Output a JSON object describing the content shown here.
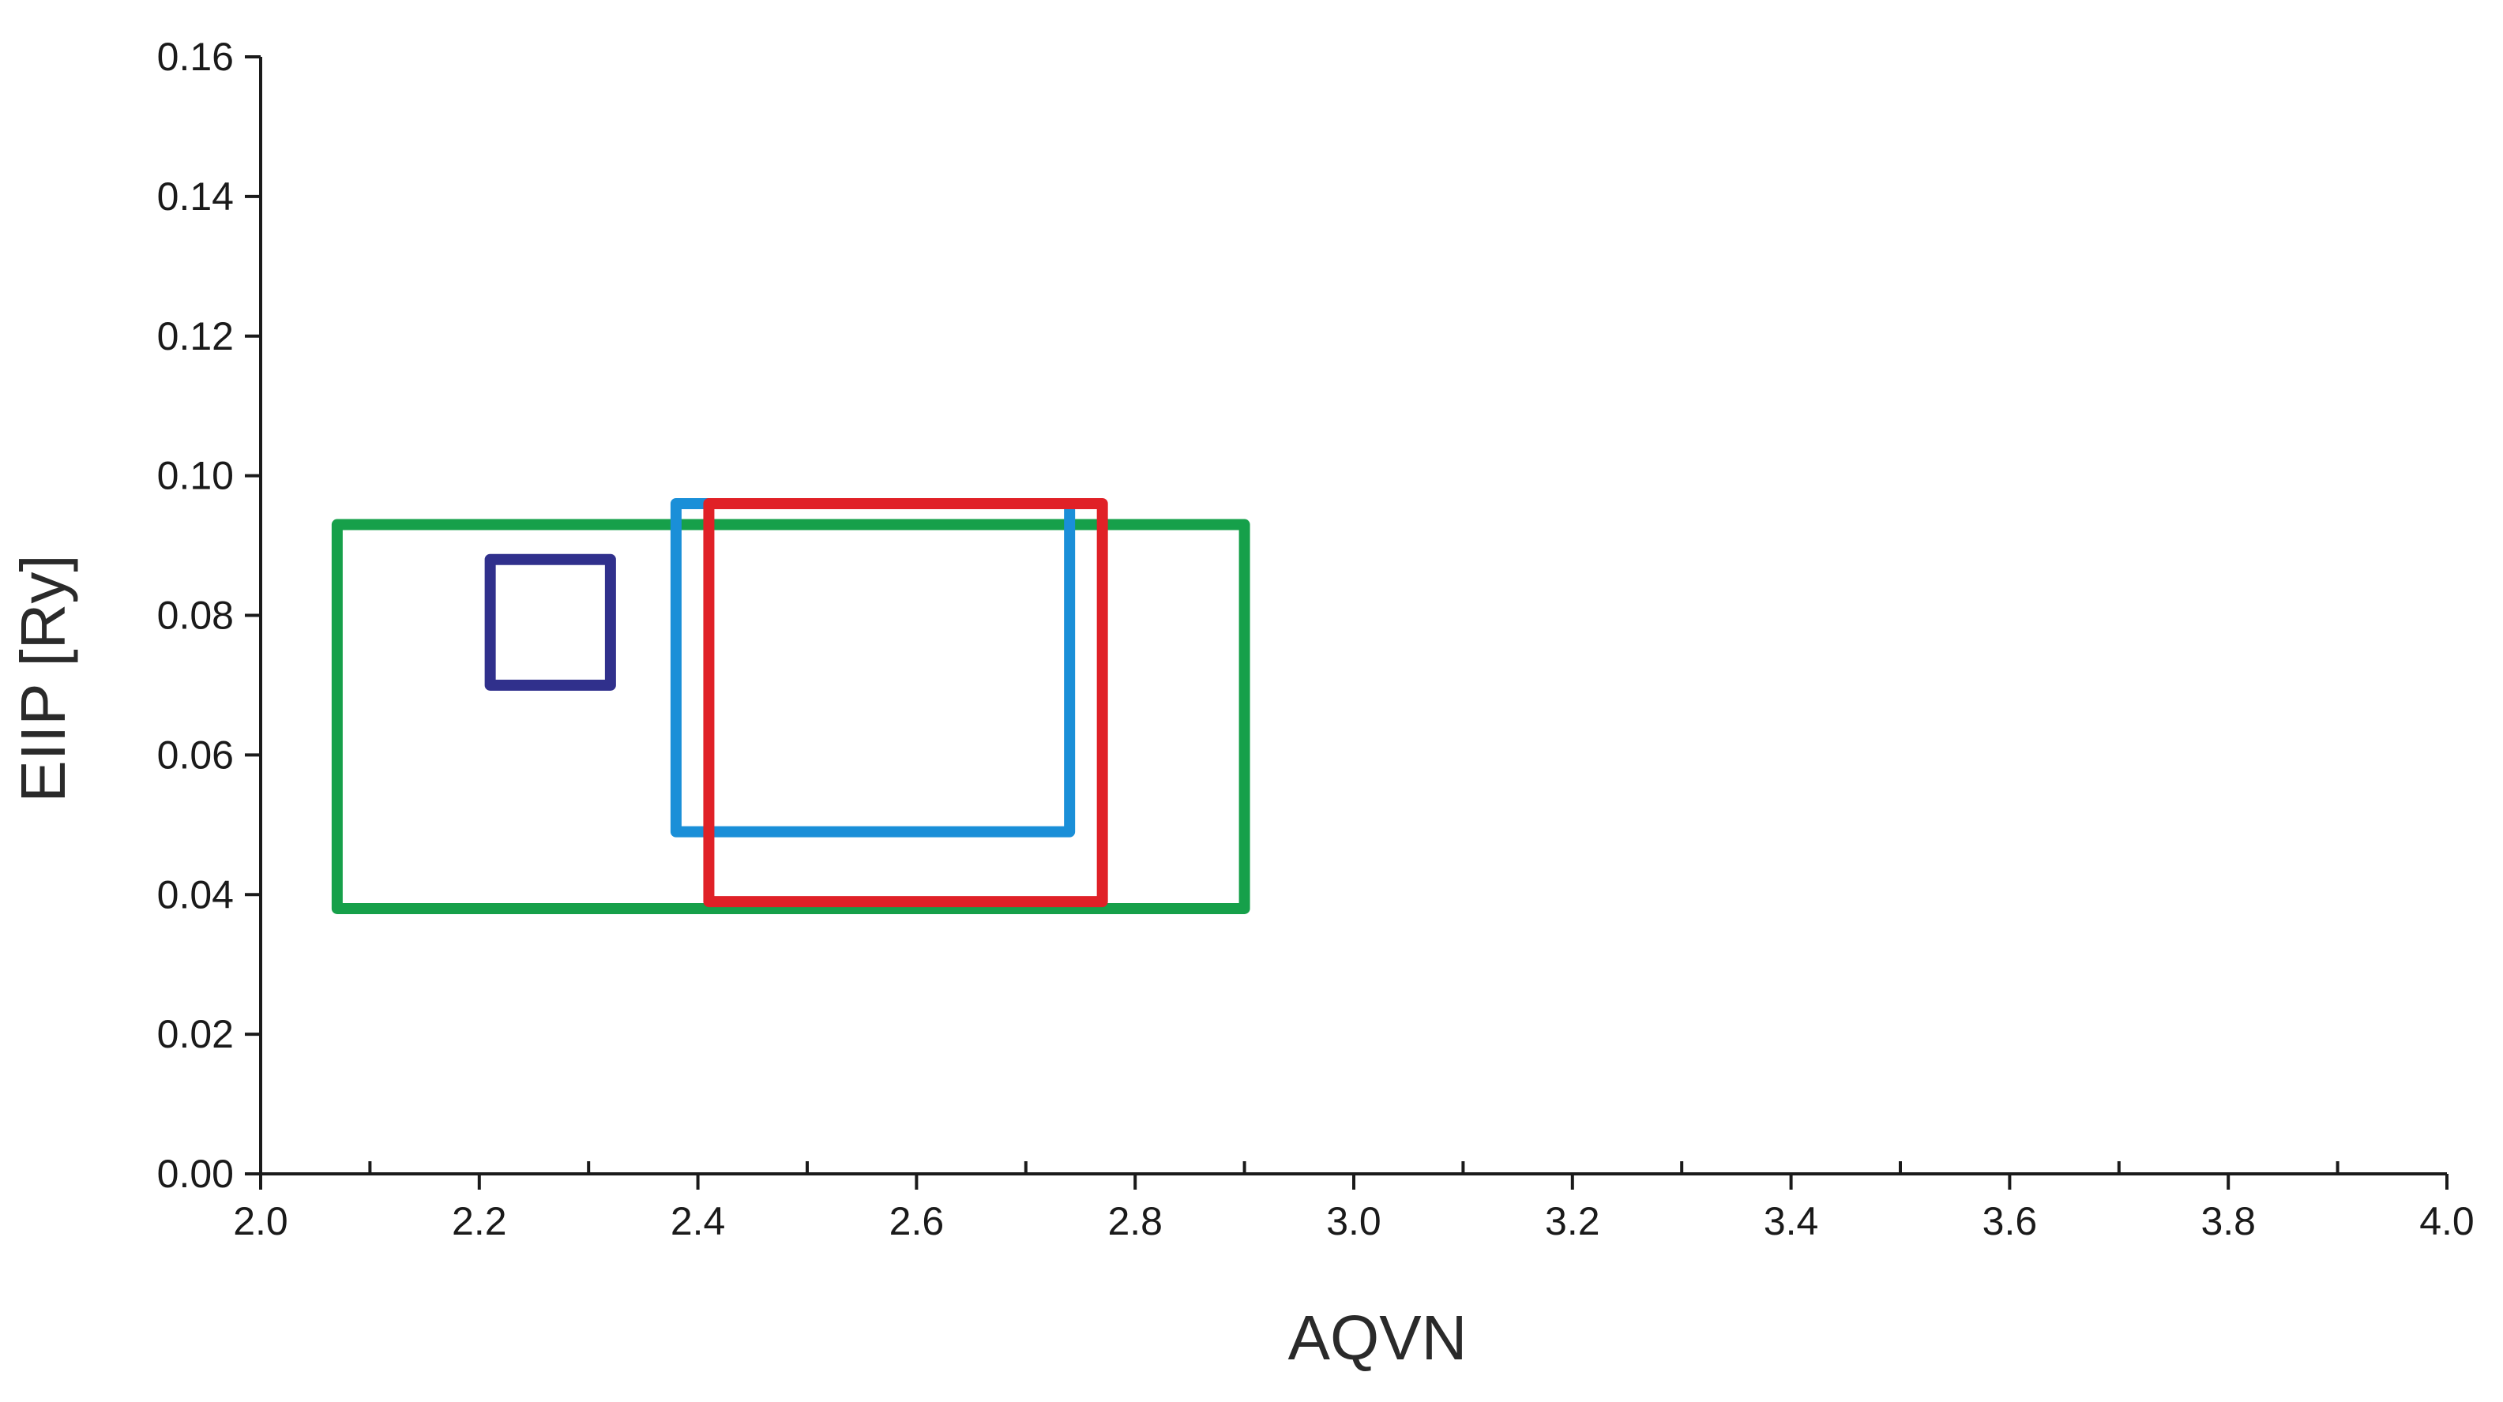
{
  "chart_data": {
    "type": "rectangle",
    "xlabel": "AQVN",
    "ylabel": "EIIP [Ry]",
    "xlim": [
      2.0,
      4.0
    ],
    "ylim": [
      0.0,
      0.16
    ],
    "x_ticks": [
      2.0,
      2.2,
      2.4,
      2.6,
      2.8,
      3.0,
      3.2,
      3.4,
      3.6,
      3.8,
      4.0
    ],
    "x_tick_labels": [
      "2.0",
      "2.2",
      "2.4",
      "2.6",
      "2.8",
      "3.0",
      "3.2",
      "3.4",
      "3.6",
      "3.8",
      "4.0"
    ],
    "x_minor_ticks": [
      2.1,
      2.3,
      2.5,
      2.7,
      2.9,
      3.1,
      3.3,
      3.5,
      3.7,
      3.9
    ],
    "y_ticks": [
      0.0,
      0.02,
      0.04,
      0.06,
      0.08,
      0.1,
      0.12,
      0.14,
      0.16
    ],
    "y_tick_labels": [
      "0.00",
      "0.02",
      "0.04",
      "0.06",
      "0.08",
      "0.10",
      "0.12",
      "0.14",
      "0.16"
    ],
    "grid": false,
    "legend": "none",
    "regions": [
      {
        "color": "#16a04a",
        "x_range": [
          2.07,
          2.9
        ],
        "y_range": [
          0.038,
          0.093
        ]
      },
      {
        "color": "#30308c",
        "x_range": [
          2.21,
          2.32
        ],
        "y_range": [
          0.07,
          0.088
        ]
      },
      {
        "color": "#1a8fd8",
        "x_range": [
          2.38,
          2.74
        ],
        "y_range": [
          0.049,
          0.096
        ]
      },
      {
        "color": "#e02127",
        "x_range": [
          2.41,
          2.77
        ],
        "y_range": [
          0.039,
          0.096
        ]
      }
    ]
  }
}
